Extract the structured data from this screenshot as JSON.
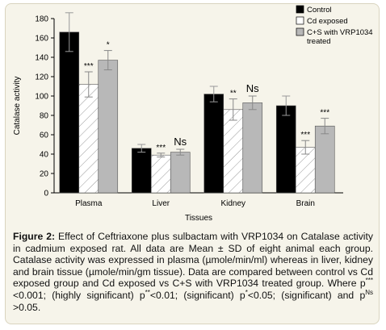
{
  "chart_data": {
    "type": "bar",
    "categories": [
      "Plasma",
      "Liver",
      "Kidney",
      "Brain"
    ],
    "series": [
      {
        "name": "Control",
        "values": [
          166,
          46,
          102,
          90
        ],
        "errors": [
          20,
          4,
          8,
          10
        ],
        "annotations": [
          "",
          "",
          "",
          ""
        ],
        "fill": "#000000",
        "pattern": "solid"
      },
      {
        "name": "Cd exposed",
        "values": [
          112,
          39,
          86,
          47
        ],
        "errors": [
          13,
          2,
          11,
          7
        ],
        "annotations": [
          "***",
          "***",
          "**",
          "***"
        ],
        "fill": "#ffffff",
        "pattern": "hatch"
      },
      {
        "name": "C+S with VRP1034 treated",
        "values": [
          137,
          42,
          93,
          69
        ],
        "errors": [
          10,
          3,
          7,
          8
        ],
        "annotations": [
          "*",
          "Ns",
          "Ns",
          "***"
        ],
        "fill": "#b8b8b8",
        "pattern": "solid"
      }
    ],
    "legend_placement": "top-right",
    "xlabel": "Tissues",
    "ylabel": "Catalase activity",
    "ylim": [
      0,
      180
    ],
    "yticks": [
      0,
      20,
      40,
      60,
      80,
      100,
      120,
      140,
      160,
      180
    ],
    "grid": false
  },
  "caption": {
    "label": "Figure 2:",
    "p1": " Effect of Ceftriaxone plus sulbactam with VRP1034 on Catalase activity in cadmium exposed rat. All data are Mean ± SD of eight animal each group. Catalase activity was expressed in plasma (µmole/min/ml) whereas in liver, kidney and brain tissue (µmole/min/gm tissue). Data are compared between control vs Cd exposed group and Cd exposed vs C+S with VRP1034 treated group. Where p",
    "sup1": "***",
    "p2": "<0.001; (highly significant) p",
    "sup2": "**",
    "p3": "<0.01; (significant) p",
    "sup3": "*",
    "p4": "<0.05; (significant) and p",
    "sup4": "Ns",
    "p5": " >0.05."
  }
}
